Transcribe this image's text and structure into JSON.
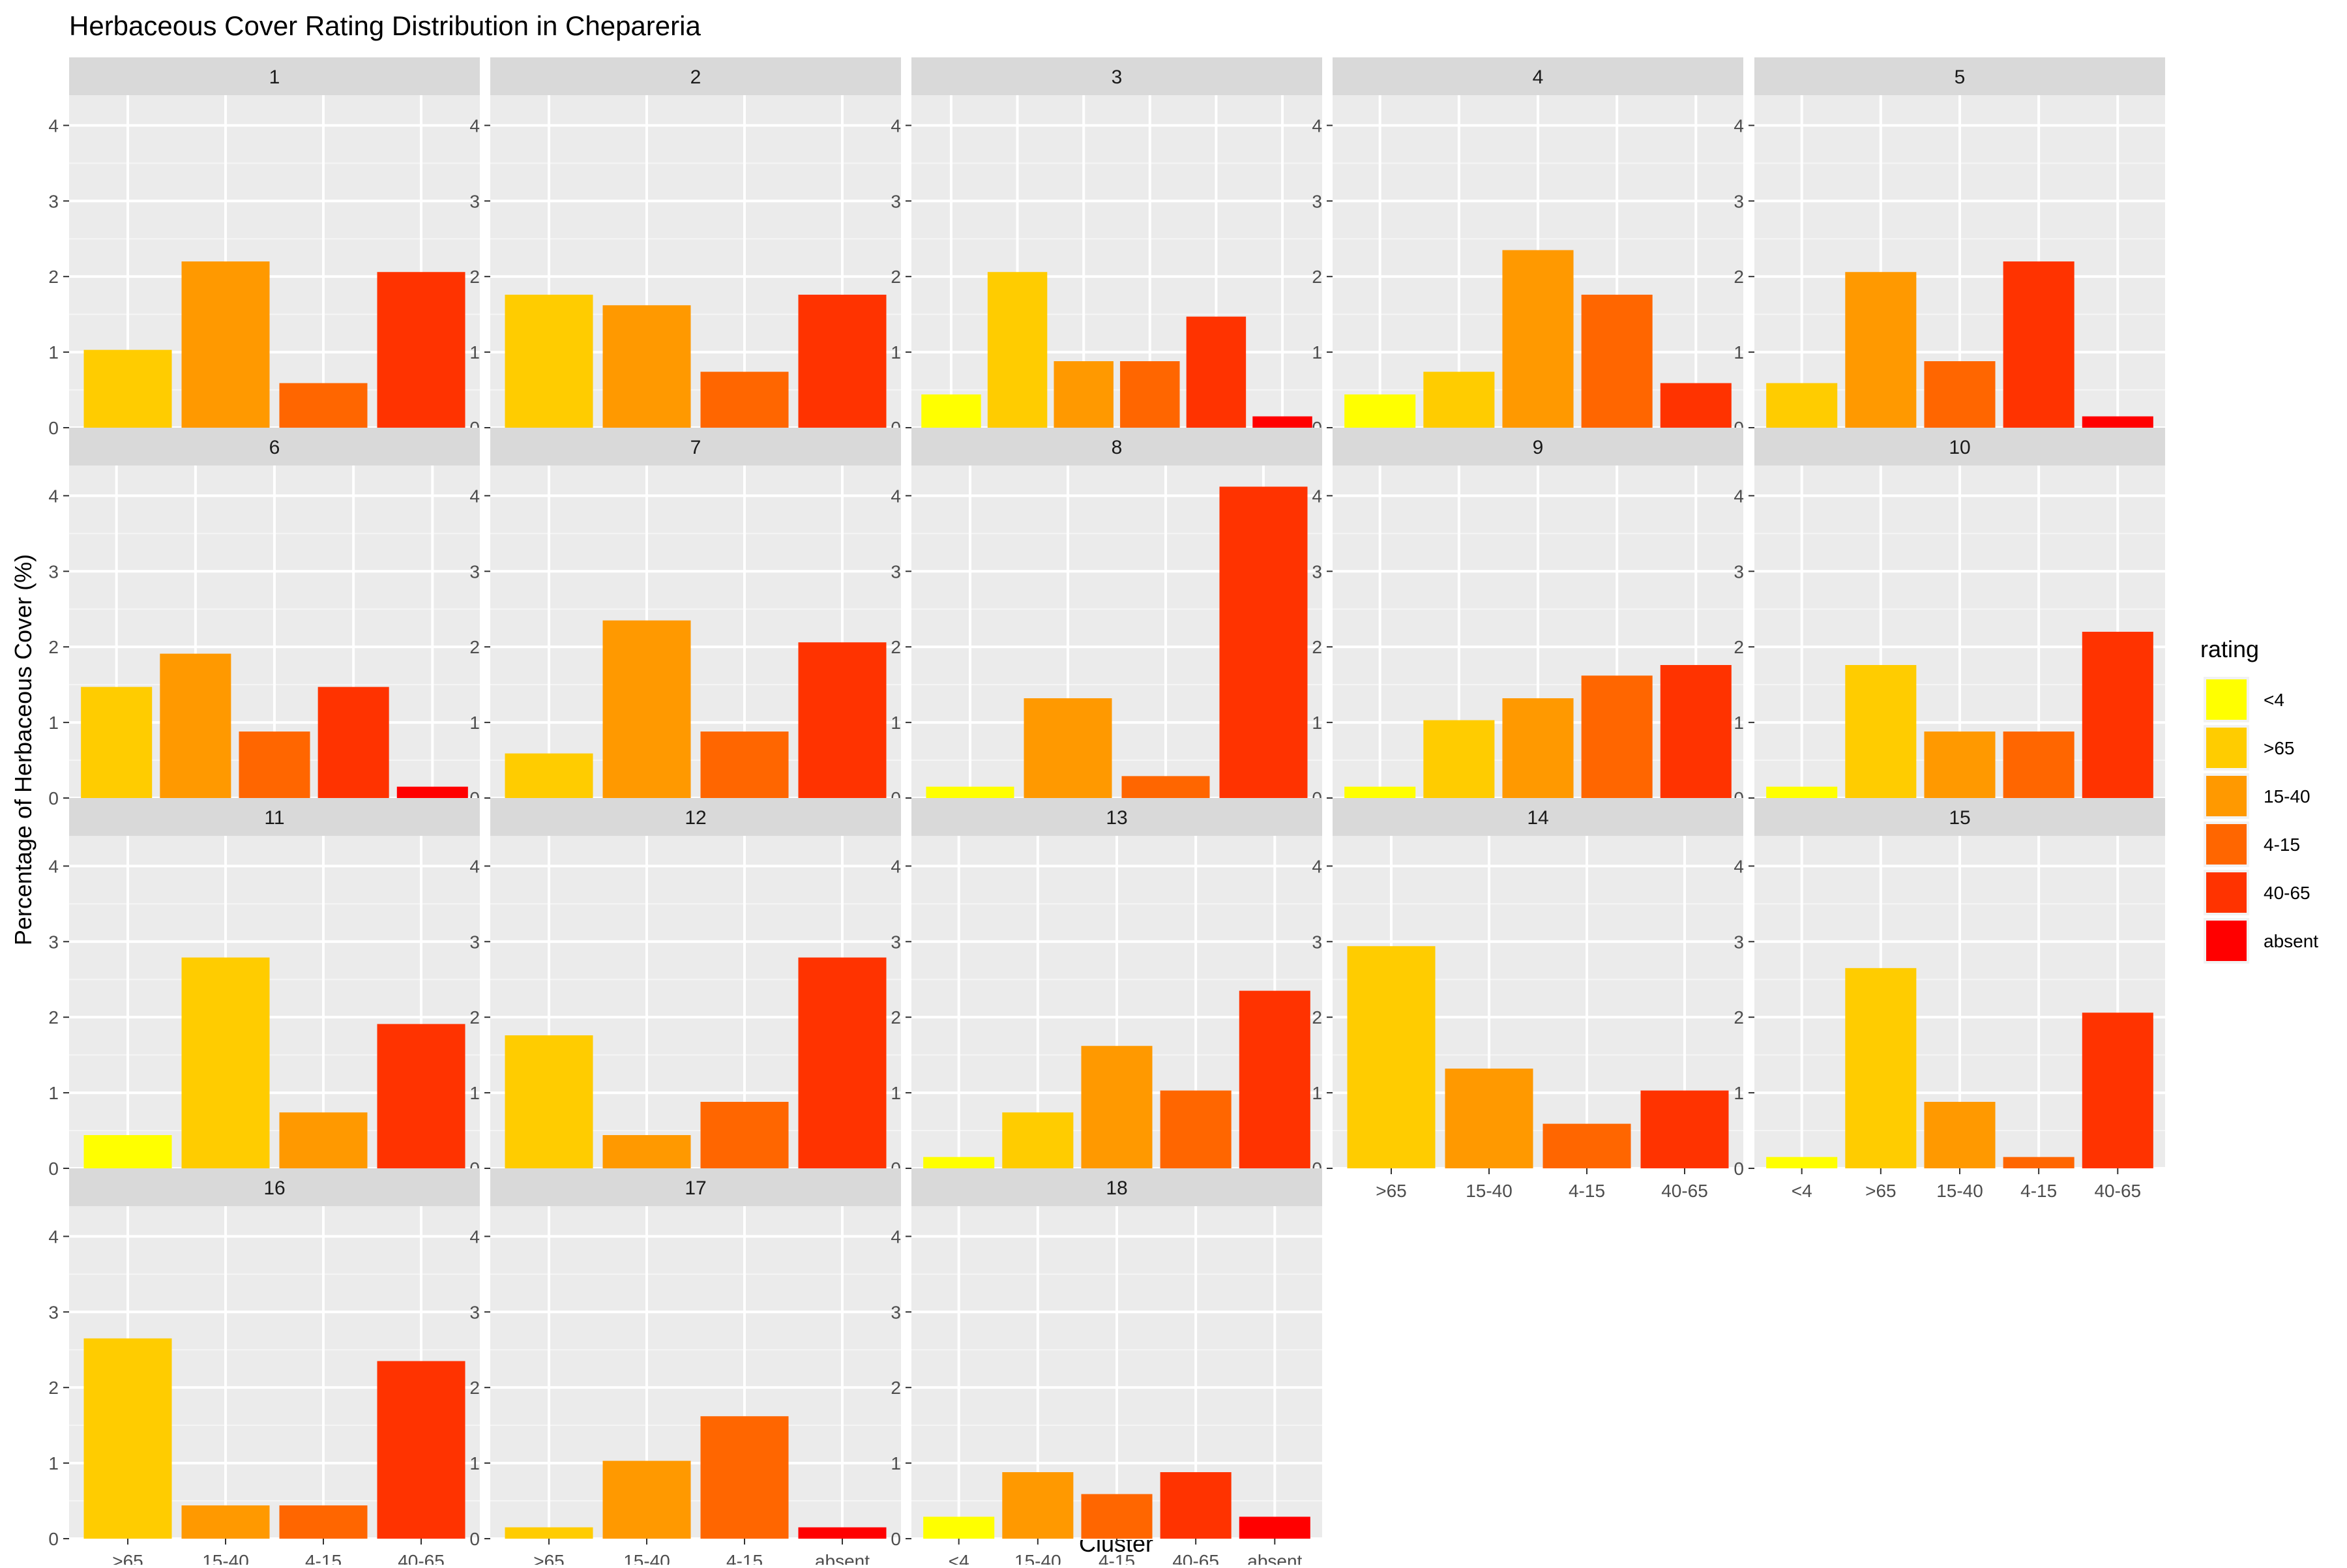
{
  "chart_data": {
    "type": "bar",
    "title": "Herbaceous Cover Rating Distribution in Chepareria",
    "xlabel": "Cluster",
    "ylabel": "Percentage of Herbaceous Cover (%)",
    "ylim": [
      0,
      4.4
    ],
    "yticks": [
      0,
      1,
      2,
      3,
      4
    ],
    "grid": true,
    "legend": {
      "title": "rating",
      "position": "right",
      "entries": [
        "<4",
        ">65",
        "15-40",
        "4-15",
        "40-65",
        "absent"
      ]
    },
    "colors": {
      "<4": "#FFFF00",
      ">65": "#FFCC00",
      "15-40": "#FF9900",
      "4-15": "#FF6600",
      "40-65": "#FF3300",
      "absent": "#FF0000"
    },
    "panels": [
      {
        "label": "1",
        "categories": [
          ">65",
          "15-40",
          "4-15",
          "40-65"
        ],
        "values": [
          1.03,
          2.2,
          0.59,
          2.06
        ]
      },
      {
        "label": "2",
        "categories": [
          ">65",
          "15-40",
          "4-15",
          "40-65"
        ],
        "values": [
          1.76,
          1.62,
          0.74,
          1.76
        ]
      },
      {
        "label": "3",
        "categories": [
          "<4",
          ">65",
          "15-40",
          "4-15",
          "40-65",
          "absent"
        ],
        "values": [
          0.44,
          2.06,
          0.88,
          0.88,
          1.47,
          0.15
        ]
      },
      {
        "label": "4",
        "categories": [
          "<4",
          ">65",
          "15-40",
          "4-15",
          "40-65"
        ],
        "values": [
          0.44,
          0.74,
          2.35,
          1.76,
          0.59
        ]
      },
      {
        "label": "5",
        "categories": [
          ">65",
          "15-40",
          "4-15",
          "40-65",
          "absent"
        ],
        "values": [
          0.59,
          2.06,
          0.88,
          2.2,
          0.15
        ]
      },
      {
        "label": "6",
        "categories": [
          ">65",
          "15-40",
          "4-15",
          "40-65",
          "absent"
        ],
        "values": [
          1.47,
          1.91,
          0.88,
          1.47,
          0.15
        ]
      },
      {
        "label": "7",
        "categories": [
          ">65",
          "15-40",
          "4-15",
          "40-65"
        ],
        "values": [
          0.59,
          2.35,
          0.88,
          2.06
        ]
      },
      {
        "label": "8",
        "categories": [
          "<4",
          "15-40",
          "4-15",
          "40-65"
        ],
        "values": [
          0.15,
          1.32,
          0.29,
          4.12
        ]
      },
      {
        "label": "9",
        "categories": [
          "<4",
          ">65",
          "15-40",
          "4-15",
          "40-65"
        ],
        "values": [
          0.15,
          1.03,
          1.32,
          1.62,
          1.76
        ]
      },
      {
        "label": "10",
        "categories": [
          "<4",
          ">65",
          "15-40",
          "4-15",
          "40-65"
        ],
        "values": [
          0.15,
          1.76,
          0.88,
          0.88,
          2.2
        ]
      },
      {
        "label": "11",
        "categories": [
          "<4",
          ">65",
          "15-40",
          "40-65"
        ],
        "values": [
          0.44,
          2.79,
          0.74,
          1.91
        ]
      },
      {
        "label": "12",
        "categories": [
          ">65",
          "15-40",
          "4-15",
          "40-65"
        ],
        "values": [
          1.76,
          0.44,
          0.88,
          2.79
        ]
      },
      {
        "label": "13",
        "categories": [
          "<4",
          ">65",
          "15-40",
          "4-15",
          "40-65"
        ],
        "values": [
          0.15,
          0.74,
          1.62,
          1.03,
          2.35
        ]
      },
      {
        "label": "14",
        "categories": [
          ">65",
          "15-40",
          "4-15",
          "40-65"
        ],
        "values": [
          2.94,
          1.32,
          0.59,
          1.03
        ]
      },
      {
        "label": "15",
        "categories": [
          "<4",
          ">65",
          "15-40",
          "4-15",
          "40-65"
        ],
        "values": [
          0.15,
          2.65,
          0.88,
          0.15,
          2.06
        ]
      },
      {
        "label": "16",
        "categories": [
          ">65",
          "15-40",
          "4-15",
          "40-65"
        ],
        "values": [
          2.65,
          0.44,
          0.44,
          2.35
        ]
      },
      {
        "label": "17",
        "categories": [
          ">65",
          "15-40",
          "4-15",
          "absent"
        ],
        "values": [
          0.15,
          1.03,
          1.62,
          0.15
        ]
      },
      {
        "label": "18",
        "categories": [
          "<4",
          "15-40",
          "4-15",
          "40-65",
          "absent"
        ],
        "values": [
          0.29,
          0.88,
          0.59,
          0.88,
          0.29
        ]
      }
    ]
  }
}
